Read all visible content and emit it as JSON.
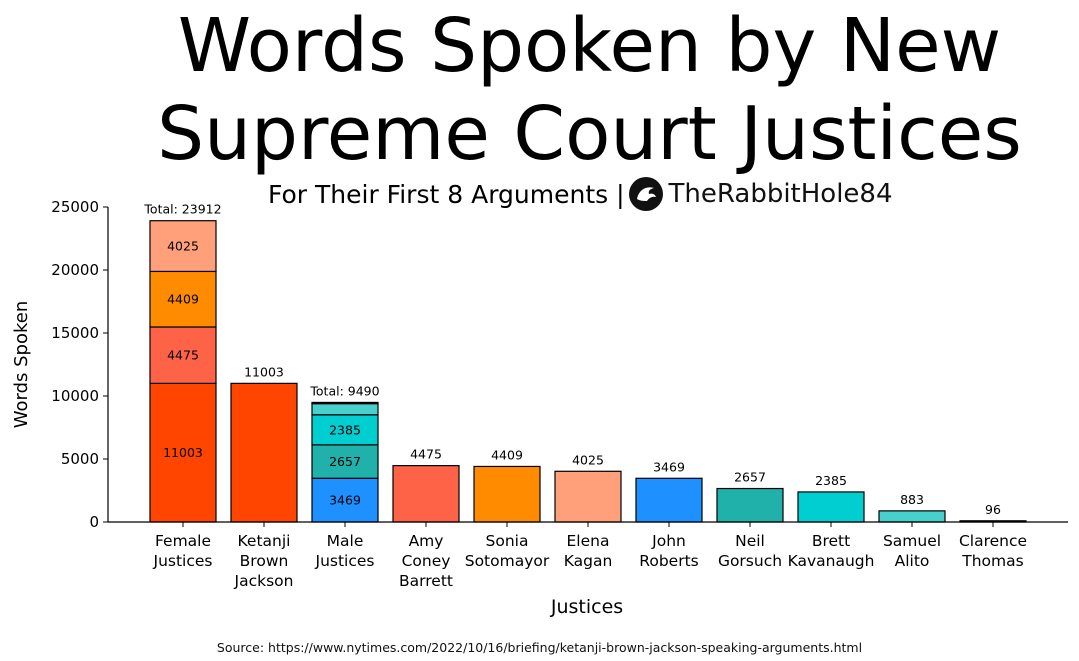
{
  "title": "Words Spoken by New Supreme Court Justices",
  "subtitle": "For Their First 8 Arguments |",
  "brand": "TheRabbitHole84",
  "source": "Source: https://www.nytimes.com/2022/10/16/briefing/ketanji-brown-jackson-speaking-arguments.html",
  "colors": {
    "jackson": "#ff4500",
    "barrett": "#ff6347",
    "sotomayor": "#ff8c00",
    "kagan": "#ffa07a",
    "roberts": "#1e90ff",
    "gorsuch": "#20b2aa",
    "kavanaugh": "#00ced1",
    "alito": "#48d1cc",
    "thomas": "#40e0d0"
  },
  "chart_data": {
    "type": "bar",
    "stacked": true,
    "xlabel": "Justices",
    "ylabel": "Words Spoken",
    "ylim": [
      0,
      25000
    ],
    "yticks": [
      0,
      5000,
      10000,
      15000,
      20000,
      25000
    ],
    "categories": [
      [
        "Female",
        "Justices"
      ],
      [
        "Ketanji",
        "Brown",
        "Jackson"
      ],
      [
        "Male",
        "Justices"
      ],
      [
        "Amy",
        "Coney",
        "Barrett"
      ],
      [
        "Sonia",
        "Sotomayor"
      ],
      [
        "Elena",
        "Kagan"
      ],
      [
        "John",
        "Roberts"
      ],
      [
        "Neil",
        "Gorsuch"
      ],
      [
        "Brett",
        "Kavanaugh"
      ],
      [
        "Samuel",
        "Alito"
      ],
      [
        "Clarence",
        "Thomas"
      ]
    ],
    "bars": [
      {
        "total_label": "Total: 23912",
        "segments": [
          {
            "value": 11003,
            "color": "jackson",
            "label": "11003"
          },
          {
            "value": 4475,
            "color": "barrett",
            "label": "4475"
          },
          {
            "value": 4409,
            "color": "sotomayor",
            "label": "4409"
          },
          {
            "value": 4025,
            "color": "kagan",
            "label": "4025"
          }
        ]
      },
      {
        "total_label": "11003",
        "segments": [
          {
            "value": 11003,
            "color": "jackson"
          }
        ]
      },
      {
        "total_label": "Total: 9490",
        "segments": [
          {
            "value": 3469,
            "color": "roberts",
            "label": "3469"
          },
          {
            "value": 2657,
            "color": "gorsuch",
            "label": "2657"
          },
          {
            "value": 2385,
            "color": "kavanaugh",
            "label": "2385"
          },
          {
            "value": 883,
            "color": "alito"
          },
          {
            "value": 96,
            "color": "thomas"
          }
        ]
      },
      {
        "total_label": "4475",
        "segments": [
          {
            "value": 4475,
            "color": "barrett"
          }
        ]
      },
      {
        "total_label": "4409",
        "segments": [
          {
            "value": 4409,
            "color": "sotomayor"
          }
        ]
      },
      {
        "total_label": "4025",
        "segments": [
          {
            "value": 4025,
            "color": "kagan"
          }
        ]
      },
      {
        "total_label": "3469",
        "segments": [
          {
            "value": 3469,
            "color": "roberts"
          }
        ]
      },
      {
        "total_label": "2657",
        "segments": [
          {
            "value": 2657,
            "color": "gorsuch"
          }
        ]
      },
      {
        "total_label": "2385",
        "segments": [
          {
            "value": 2385,
            "color": "kavanaugh"
          }
        ]
      },
      {
        "total_label": "883",
        "segments": [
          {
            "value": 883,
            "color": "alito"
          }
        ]
      },
      {
        "total_label": "96",
        "segments": [
          {
            "value": 96,
            "color": "thomas"
          }
        ]
      }
    ]
  }
}
